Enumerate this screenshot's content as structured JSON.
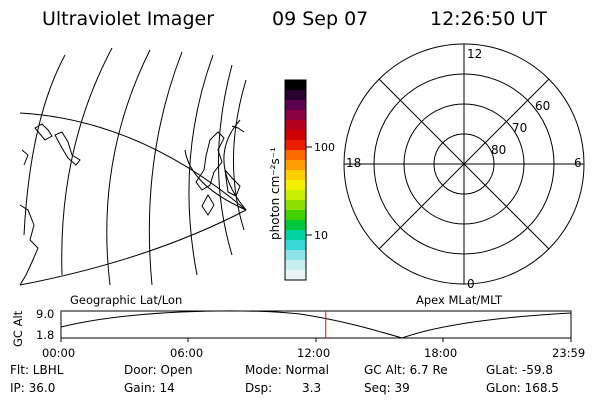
{
  "header": {
    "instrument": "Ultraviolet Imager",
    "date": "09 Sep 07",
    "time": "12:26:50 UT"
  },
  "panels": {
    "geographic_label": "Geographic Lat/Lon",
    "apex_label": "Apex MLat/MLT",
    "polar_labels": {
      "top": "12",
      "bottom": "0",
      "left": "18",
      "right": "6",
      "lat60": "60",
      "lat70": "70",
      "lat80": "80"
    }
  },
  "colorbar": {
    "unit": "photon cm⁻²s⁻¹",
    "tick_high": "100",
    "tick_low": "10",
    "colors": [
      "#000000",
      "#2a0030",
      "#5c0050",
      "#8a0040",
      "#b0001e",
      "#d10000",
      "#ee1c00",
      "#ff6a00",
      "#ff9d00",
      "#ffcf00",
      "#f5f000",
      "#c8f000",
      "#8ee000",
      "#42d000",
      "#00c83c",
      "#00d4a0",
      "#38d8d8",
      "#8ce4e6",
      "#c4eef0",
      "#e8f4f6"
    ]
  },
  "plot": {
    "ylabel": "GC Alt",
    "yticks": [
      "9.0",
      "1.8"
    ],
    "xticks": [
      "00:00",
      "06:00",
      "12:00",
      "18:00",
      "23:59"
    ],
    "marker_hour": 12.45
  },
  "info": {
    "row1": {
      "flt": "Flt: LBHL",
      "door": "Door: Open",
      "mode": "Mode: Normal",
      "gc_alt": "GC Alt: 6.7 Re",
      "glat": "GLat: -59.8"
    },
    "row2": {
      "ip": "IP: 36.0",
      "gain": "Gain: 14",
      "dsp_label": "Dsp:",
      "dsp_value": "3.3",
      "seq": "Seq: 39",
      "glon": "GLon: 168.5"
    }
  }
}
